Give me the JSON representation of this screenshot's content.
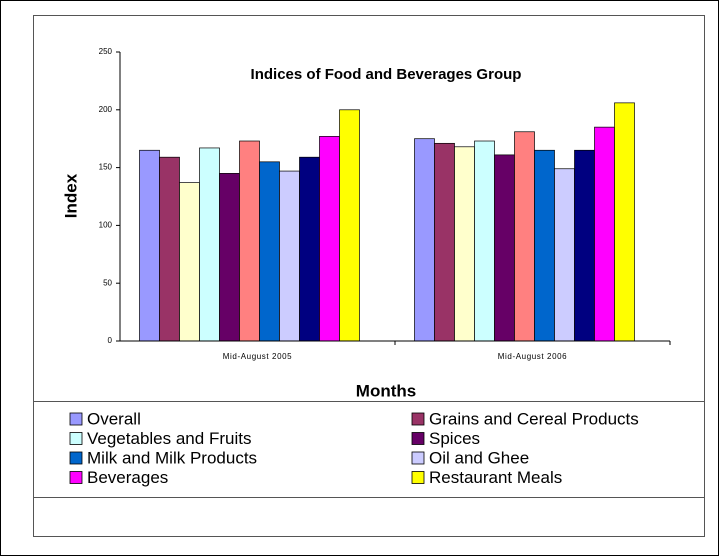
{
  "chart_data": {
    "type": "bar",
    "title": "Indices of Food and Beverages Group",
    "x_label": "Months",
    "y_label": "Index",
    "categories": [
      "Mid-August 2005",
      "Mid-August 2006"
    ],
    "ylim": [
      0,
      250
    ],
    "yticks": [
      0,
      50,
      100,
      150,
      200,
      250
    ],
    "grid": false,
    "series": [
      {
        "name": "Overall",
        "color": "#9999ff",
        "values": [
          165,
          175
        ]
      },
      {
        "name": "Grains and Cereal Products",
        "color": "#993366",
        "values": [
          159,
          171
        ]
      },
      {
        "color": "#ffffcc",
        "values": [
          137,
          168
        ]
      },
      {
        "name": "Vegetables and Fruits",
        "color": "#ccffff",
        "values": [
          167,
          173
        ]
      },
      {
        "name": "Spices",
        "color": "#660066",
        "values": [
          145,
          161
        ]
      },
      {
        "color": "#ff8080",
        "values": [
          173,
          181
        ]
      },
      {
        "name": "Milk and Milk Products",
        "color": "#0066cc",
        "values": [
          155,
          165
        ]
      },
      {
        "name": "Oil and Ghee",
        "color": "#ccccff",
        "values": [
          147,
          149
        ]
      },
      {
        "color": "#000080",
        "values": [
          159,
          165
        ]
      },
      {
        "name": "Beverages",
        "color": "#ff00ff",
        "values": [
          177,
          185
        ]
      },
      {
        "name": "Restaurant Meals",
        "color": "#ffff00",
        "values": [
          200,
          206
        ]
      }
    ]
  }
}
